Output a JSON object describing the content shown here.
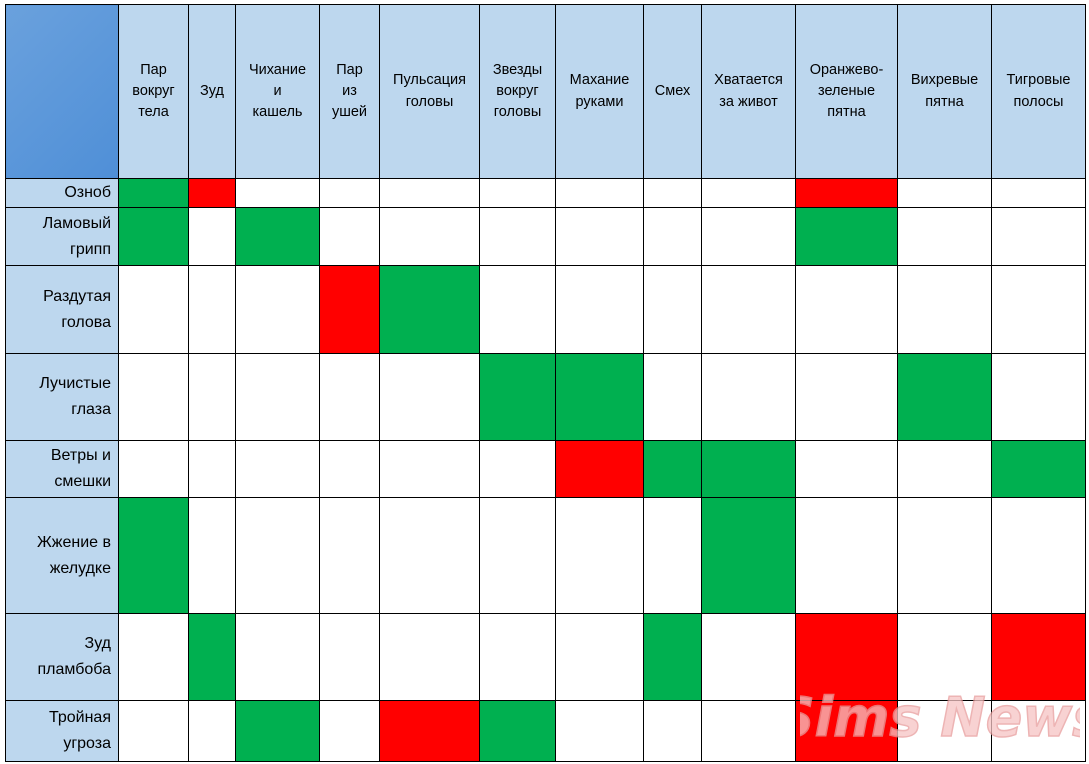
{
  "table": {
    "columns": [
      "Пар\nвокруг\nтела",
      "Зуд",
      "Чихание\nи\nкашель",
      "Пар\nиз\nушей",
      "Пульсация\nголовы",
      "Звезды\nвокруг\nголовы",
      "Махание\nруками",
      "Смех",
      "Хватается\nза живот",
      "Оранжево-\nзеленые\nпятна",
      "Вихревые\nпятна",
      "Тигровые\nполосы"
    ],
    "rows": [
      {
        "label": "Озноб",
        "cells": [
          "G",
          "R",
          "",
          "",
          "",
          "",
          "",
          "",
          "",
          "R",
          "",
          ""
        ]
      },
      {
        "label": "Ламовый\nгрипп",
        "cells": [
          "G",
          "",
          "G",
          "",
          "",
          "",
          "",
          "",
          "",
          "G",
          "",
          ""
        ]
      },
      {
        "label": "Раздутая\nголова",
        "cells": [
          "",
          "",
          "",
          "R",
          "G",
          "",
          "",
          "",
          "",
          "",
          "",
          ""
        ]
      },
      {
        "label": "Лучистые\nглаза",
        "cells": [
          "",
          "",
          "",
          "",
          "",
          "G",
          "G",
          "",
          "",
          "",
          "G",
          ""
        ]
      },
      {
        "label": "Ветры и\nсмешки",
        "cells": [
          "",
          "",
          "",
          "",
          "",
          "",
          "R",
          "G",
          "G",
          "",
          "",
          "G"
        ]
      },
      {
        "label": "Жжение в\nжелудке",
        "cells": [
          "G",
          "",
          "",
          "",
          "",
          "",
          "",
          "",
          "G",
          "",
          "",
          ""
        ]
      },
      {
        "label": "Зуд\nпламбоба",
        "cells": [
          "",
          "G",
          "",
          "",
          "",
          "",
          "",
          "G",
          "",
          "R",
          "",
          "R"
        ]
      },
      {
        "label": "Тройная\nугроза",
        "cells": [
          "",
          "",
          "G",
          "",
          "R",
          "G",
          "",
          "",
          "",
          "R",
          "",
          ""
        ]
      }
    ],
    "colors": {
      "G": "#00b050",
      "R": "#ff0000",
      "header": "#bdd7ee",
      "corner": "#5b9bd5"
    }
  },
  "watermark": {
    "text": "Sims News",
    "color": "#f3b0b0"
  }
}
